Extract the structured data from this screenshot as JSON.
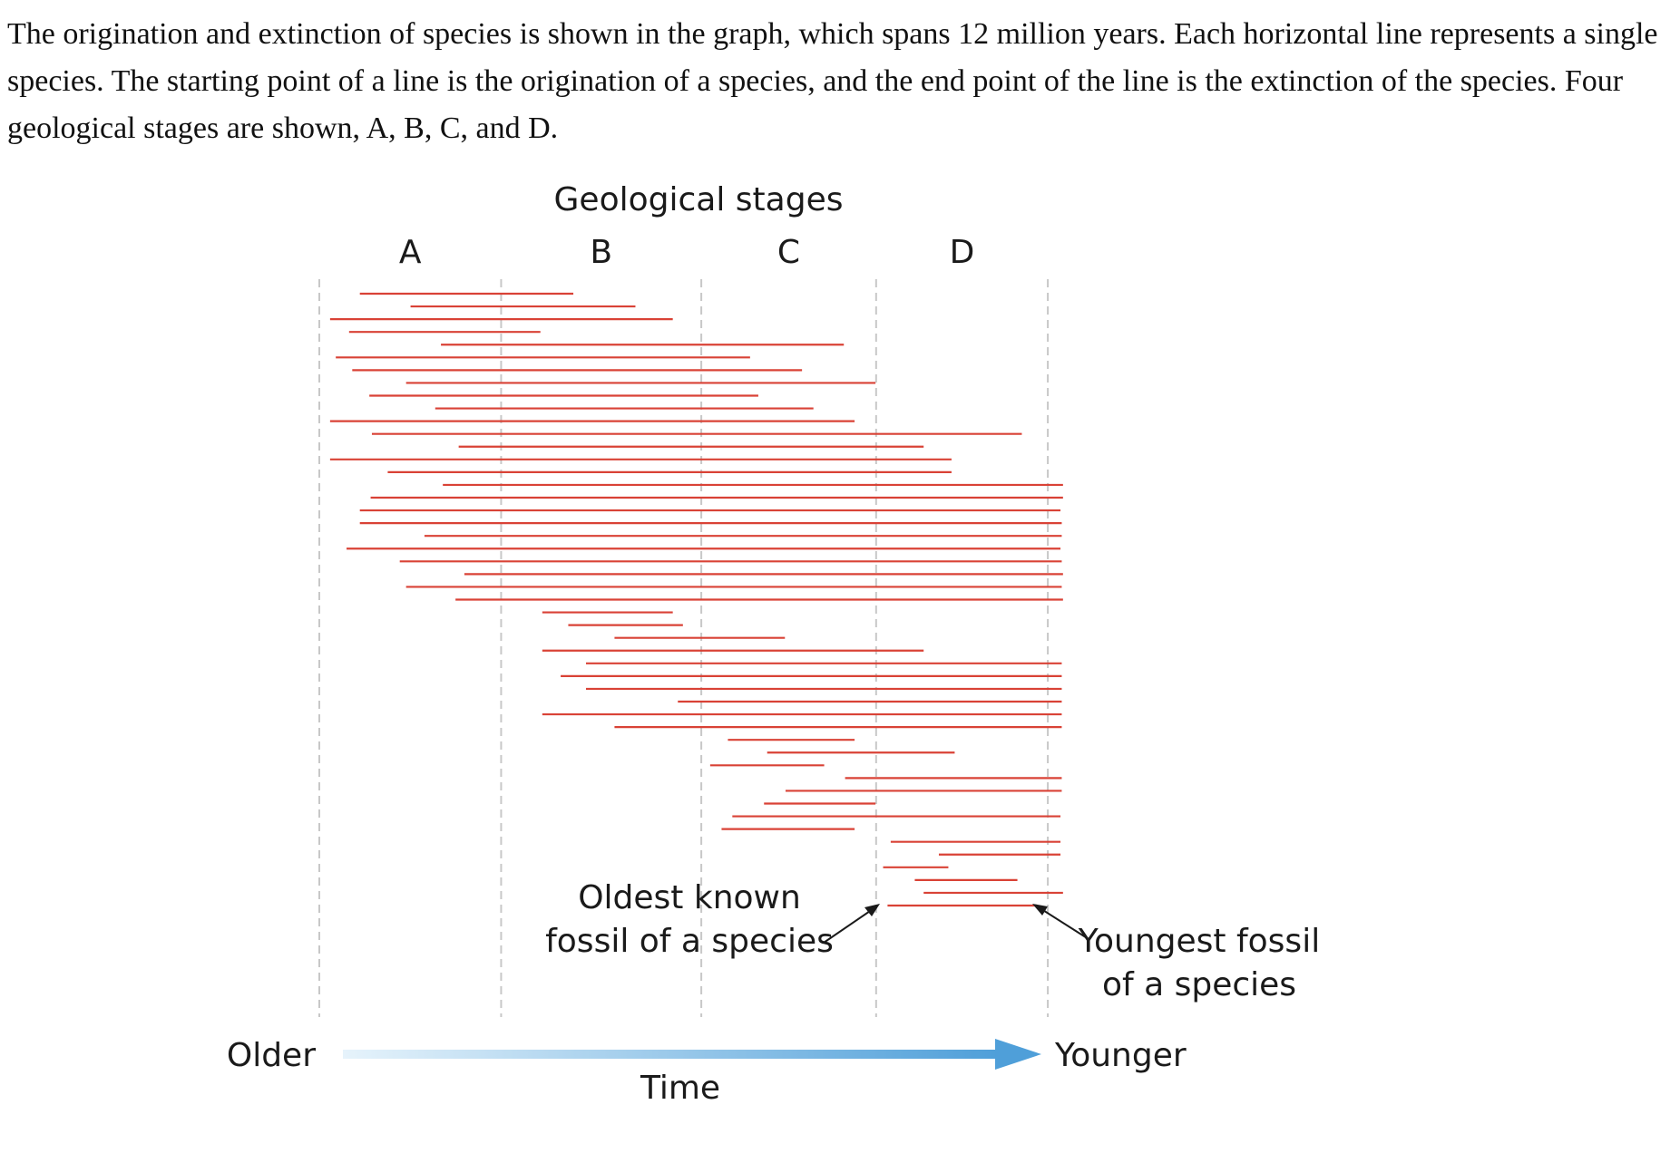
{
  "intro_text": "The origination and extinction of species is shown in the graph, which spans 12 million years. Each horizontal line represents a single species. The starting point of a line is the origination of a species, and the end point of the line is the extinction of the species. Four geological stages are shown, A, B, C, and D.",
  "figure": {
    "heading": "Geological stages",
    "stages": [
      "A",
      "B",
      "C",
      "D"
    ],
    "annotation_oldest": [
      "Oldest known",
      "fossil of a species"
    ],
    "annotation_youngest": [
      "Youngest fossil",
      "of a species"
    ],
    "axis_left": "Older",
    "axis_right": "Younger",
    "axis_label": "Time",
    "colors": {
      "species_line": "#d94236",
      "boundary_line": "#c8c8c8",
      "arrow_start": "#e6f3fb",
      "arrow_end": "#4f9fd9",
      "text": "#1a1a1a"
    }
  },
  "chart_data": {
    "type": "range-lines",
    "x_range_myr": [
      0,
      12
    ],
    "stage_boundaries_myr": [
      0,
      2.87,
      6.03,
      8.79,
      11.5
    ],
    "species_ranges_myr": [
      [
        0.64,
        4.01
      ],
      [
        1.44,
        4.99
      ],
      [
        0.17,
        5.58
      ],
      [
        0.47,
        3.49
      ],
      [
        1.92,
        8.28
      ],
      [
        0.26,
        6.8
      ],
      [
        0.52,
        7.62
      ],
      [
        1.37,
        8.78
      ],
      [
        0.79,
        6.93
      ],
      [
        1.83,
        7.8
      ],
      [
        0.17,
        8.45
      ],
      [
        0.83,
        11.09
      ],
      [
        2.2,
        9.54
      ],
      [
        0.17,
        9.98
      ],
      [
        1.08,
        9.98
      ],
      [
        1.95,
        11.74
      ],
      [
        0.81,
        11.74
      ],
      [
        0.64,
        11.7
      ],
      [
        0.64,
        11.72
      ],
      [
        1.66,
        11.72
      ],
      [
        0.43,
        11.7
      ],
      [
        1.27,
        11.72
      ],
      [
        2.29,
        11.74
      ],
      [
        1.37,
        11.72
      ],
      [
        2.15,
        11.74
      ],
      [
        3.52,
        5.58
      ],
      [
        3.93,
        5.74
      ],
      [
        4.66,
        7.35
      ],
      [
        3.52,
        9.54
      ],
      [
        4.21,
        11.72
      ],
      [
        3.81,
        11.72
      ],
      [
        4.21,
        11.72
      ],
      [
        5.66,
        11.72
      ],
      [
        3.52,
        11.72
      ],
      [
        4.66,
        11.72
      ],
      [
        6.45,
        8.45
      ],
      [
        7.07,
        10.03
      ],
      [
        6.17,
        7.97
      ],
      [
        8.3,
        11.72
      ],
      [
        7.36,
        11.72
      ],
      [
        7.02,
        8.78
      ],
      [
        6.52,
        11.7
      ],
      [
        6.35,
        8.45
      ],
      [
        9.02,
        11.7
      ],
      [
        9.78,
        11.7
      ],
      [
        8.9,
        9.93
      ],
      [
        9.4,
        11.02
      ],
      [
        9.54,
        11.74
      ],
      [
        8.97,
        11.33
      ]
    ]
  }
}
